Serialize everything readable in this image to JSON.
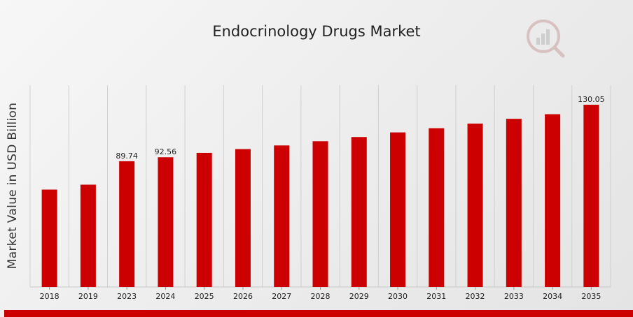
{
  "chart_data": {
    "type": "bar",
    "title": "Endocrinology Drugs Market",
    "ylabel": "Market Value in USD Billion",
    "xlabel": "",
    "categories": [
      "2018",
      "2019",
      "2023",
      "2024",
      "2025",
      "2026",
      "2027",
      "2028",
      "2029",
      "2030",
      "2031",
      "2032",
      "2033",
      "2034",
      "2035"
    ],
    "values": [
      69.5,
      73.0,
      89.74,
      92.56,
      95.7,
      98.4,
      101.0,
      104.0,
      107.0,
      110.3,
      113.3,
      116.6,
      120.0,
      123.3,
      130.05
    ],
    "data_labels": [
      {
        "category": "2023",
        "text": "89.74"
      },
      {
        "category": "2024",
        "text": "92.56"
      },
      {
        "category": "2035",
        "text": "130.05"
      }
    ],
    "ylim": [
      0,
      130.05
    ],
    "grid": "vertical",
    "bar_color": "#cc0000"
  },
  "colors": {
    "accent": "#cc0000",
    "grid": "#d0d0d0"
  },
  "logo": {
    "icon": "mrfr-chart-magnifier-logo"
  }
}
